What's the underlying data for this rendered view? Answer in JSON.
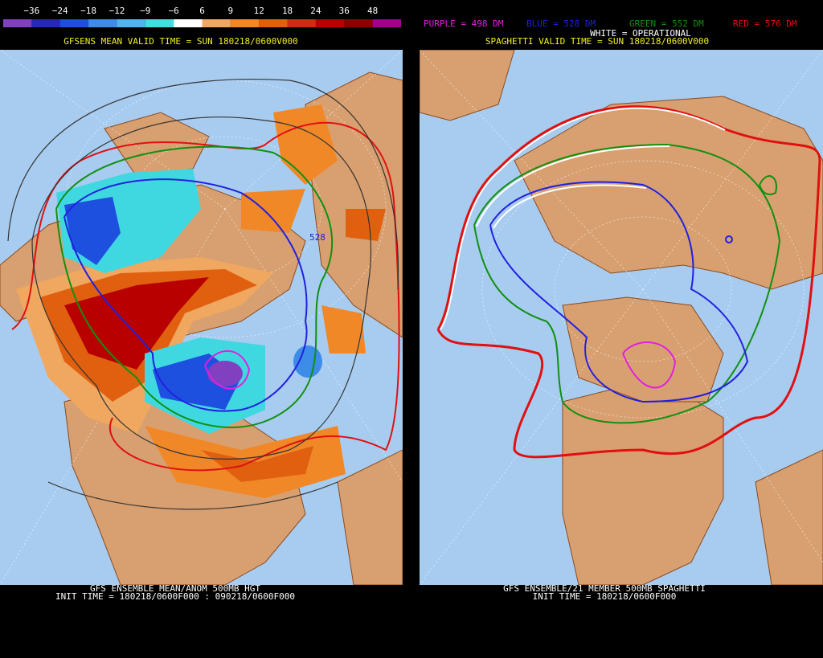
{
  "left_panel": {
    "colorbar": {
      "labels": [
        "−36",
        "−24",
        "−18",
        "−12",
        "−9",
        "−6",
        "6",
        "9",
        "12",
        "18",
        "24",
        "36",
        "48"
      ],
      "colors": [
        "#8040c0",
        "#2828b8",
        "#1e50e0",
        "#3c8ce8",
        "#50b4f0",
        "#40e0e0",
        "#ffffff",
        "#f0a860",
        "#f08828",
        "#e06010",
        "#d02c10",
        "#b80000",
        "#8c0000",
        "#a00090"
      ]
    },
    "title": "GFSENS MEAN VALID TIME = SUN 180218/0600V000",
    "contour_label": "528",
    "footer": [
      "GFS ENSEMBLE MEAN/ANOM 500MB HGT",
      "INIT TIME = 180218/0600F000 : 090218/0600F000"
    ]
  },
  "right_panel": {
    "legend": [
      {
        "label": "PURPLE = 498 DM",
        "color": "#e020e0"
      },
      {
        "label": "BLUE = 528 DM",
        "color": "#2020e0"
      },
      {
        "label": "GREEN = 552 DM",
        "color": "#109010"
      },
      {
        "label": "RED = 576 DM",
        "color": "#e01010"
      }
    ],
    "operational": "WHITE = OPERATIONAL",
    "title": "SPAGHETTI VALID TIME = SUN 180218/0600V000",
    "footer": [
      "GFS ENSEMBLE/21 MEMBER 500MB SPAGHETTI",
      "INIT TIME = 180218/0600F000"
    ]
  }
}
